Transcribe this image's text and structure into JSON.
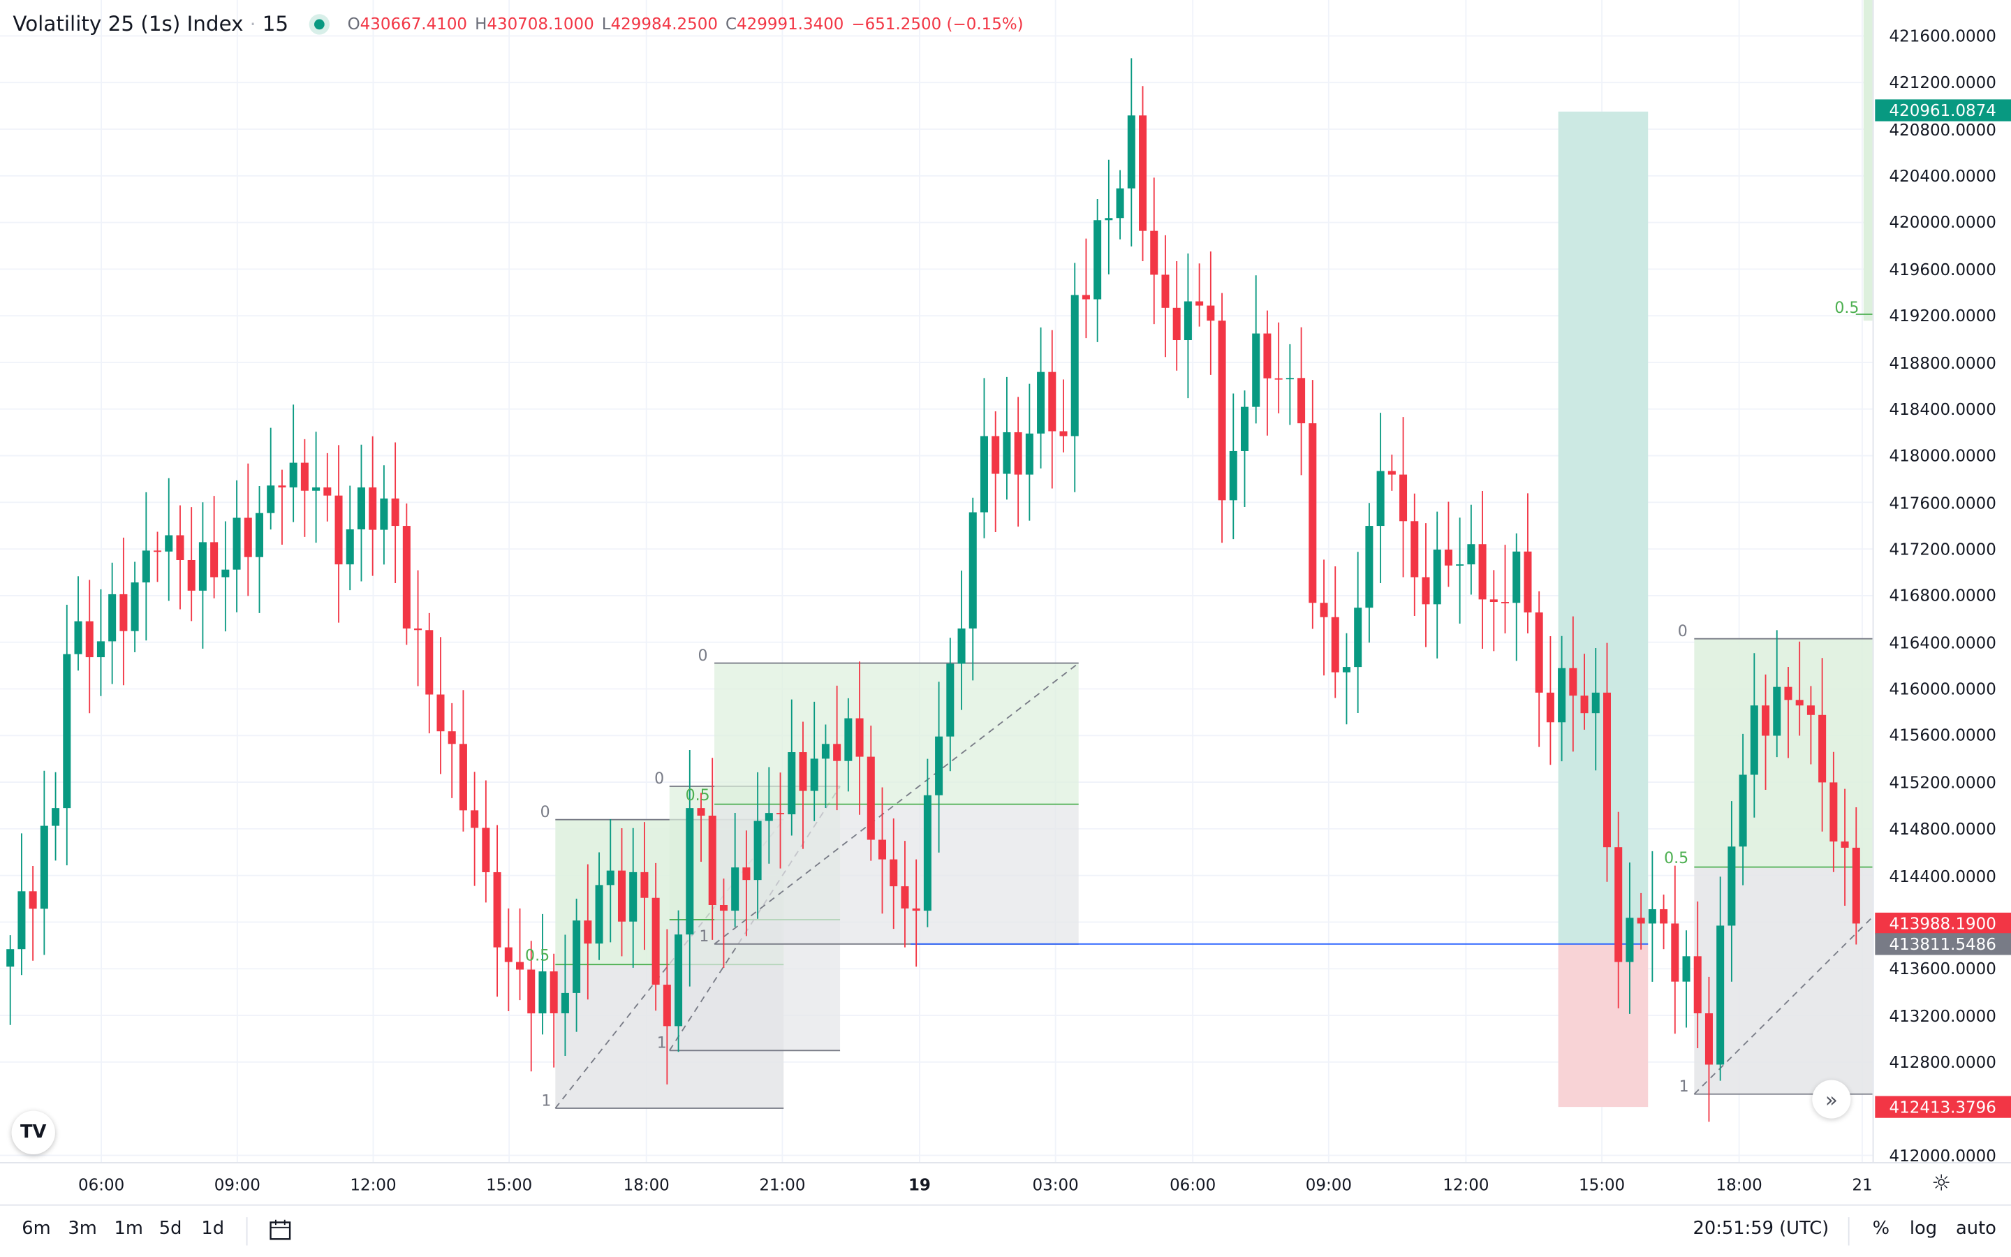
{
  "header": {
    "symbol": "Volatility 25 (1s) Index",
    "separator": "·",
    "interval": "15",
    "open_label": "O",
    "open": "430667.4100",
    "high_label": "H",
    "high": "430708.1000",
    "low_label": "L",
    "low": "429984.2500",
    "close_label": "C",
    "close": "429991.3400",
    "change": "−651.2500 (−0.15%)"
  },
  "colors": {
    "up": "#089981",
    "down": "#f23645",
    "grid": "#f0f3fa",
    "zone_green": "#ddf0dd",
    "zone_gray": "#e4e5e8",
    "target": "#cce9e3",
    "stop": "#f8d3d6",
    "line_blue": "#2962ff"
  },
  "price_axis": {
    "ticks": [
      "421600.0000",
      "421200.0000",
      "420800.0000",
      "420400.0000",
      "420000.0000",
      "419600.0000",
      "419200.0000",
      "418800.0000",
      "418400.0000",
      "418000.0000",
      "417600.0000",
      "417200.0000",
      "416800.0000",
      "416400.0000",
      "416000.0000",
      "415600.0000",
      "415200.0000",
      "414800.0000",
      "414400.0000",
      "414000.0000",
      "413600.0000",
      "413200.0000",
      "412800.0000",
      "412000.0000"
    ],
    "badges": [
      {
        "value": "420961.0874",
        "color": "#089981"
      },
      {
        "value": "413988.1900",
        "color": "#f23645"
      },
      {
        "value": "413811.5486",
        "color": "#787b86"
      },
      {
        "value": "412413.3796",
        "color": "#f23645"
      }
    ]
  },
  "time_axis": {
    "ticks": [
      "06:00",
      "09:00",
      "12:00",
      "15:00",
      "18:00",
      "21:00",
      "19",
      "03:00",
      "06:00",
      "09:00",
      "12:00",
      "15:00",
      "18:00",
      "21"
    ]
  },
  "fib_labels": {
    "zero": "0",
    "half": "0.5",
    "one": "1"
  },
  "bottom_bar": {
    "ranges": [
      "6m",
      "3m",
      "1m",
      "5d",
      "1d"
    ],
    "clock": "20:51:59 (UTC)",
    "percent": "%",
    "log": "log",
    "auto": "auto"
  },
  "logo": "TV",
  "chart_data": {
    "type": "candlestick",
    "interval_minutes": 15,
    "ylim": [
      411900,
      421800
    ],
    "path": [
      [
        0,
        413768
      ],
      [
        4,
        414978
      ],
      [
        5,
        416298
      ],
      [
        8,
        416408
      ],
      [
        13,
        417178
      ],
      [
        18,
        416958
      ],
      [
        22,
        417508
      ],
      [
        24,
        417728
      ],
      [
        27,
        417728
      ],
      [
        29,
        417068
      ],
      [
        31,
        417728
      ],
      [
        34,
        417398
      ],
      [
        35,
        416518
      ],
      [
        39,
        415528
      ],
      [
        42,
        414428
      ],
      [
        44,
        413658
      ],
      [
        48,
        413218
      ],
      [
        52,
        414318
      ],
      [
        56,
        414208
      ],
      [
        58,
        413108
      ],
      [
        60,
        414978
      ],
      [
        63,
        414098
      ],
      [
        66,
        414868
      ],
      [
        72,
        415528
      ],
      [
        74,
        415748
      ],
      [
        77,
        414538
      ],
      [
        80,
        414098
      ],
      [
        81,
        415088
      ],
      [
        84,
        416518
      ],
      [
        86,
        418168
      ],
      [
        89,
        417838
      ],
      [
        91,
        418718
      ],
      [
        93,
        418168
      ],
      [
        94,
        419378
      ],
      [
        97,
        420038
      ],
      [
        99,
        420918
      ],
      [
        100,
        419928
      ],
      [
        102,
        419268
      ],
      [
        106,
        419158
      ],
      [
        107,
        417618
      ],
      [
        110,
        419048
      ],
      [
        114,
        418278
      ],
      [
        115,
        416738
      ],
      [
        118,
        416188
      ],
      [
        120,
        417398
      ],
      [
        122,
        417838
      ],
      [
        124,
        416958
      ],
      [
        128,
        417068
      ],
      [
        132,
        416738
      ],
      [
        133,
        417178
      ],
      [
        135,
        415968
      ],
      [
        140,
        415968
      ],
      [
        142,
        413658
      ],
      [
        144,
        413988
      ],
      [
        146,
        413988
      ],
      [
        149,
        413218
      ],
      [
        150,
        412778
      ],
      [
        152,
        414648
      ],
      [
        154,
        415858
      ],
      [
        158,
        415858
      ],
      [
        160,
        415198
      ],
      [
        163,
        413988
      ]
    ]
  }
}
